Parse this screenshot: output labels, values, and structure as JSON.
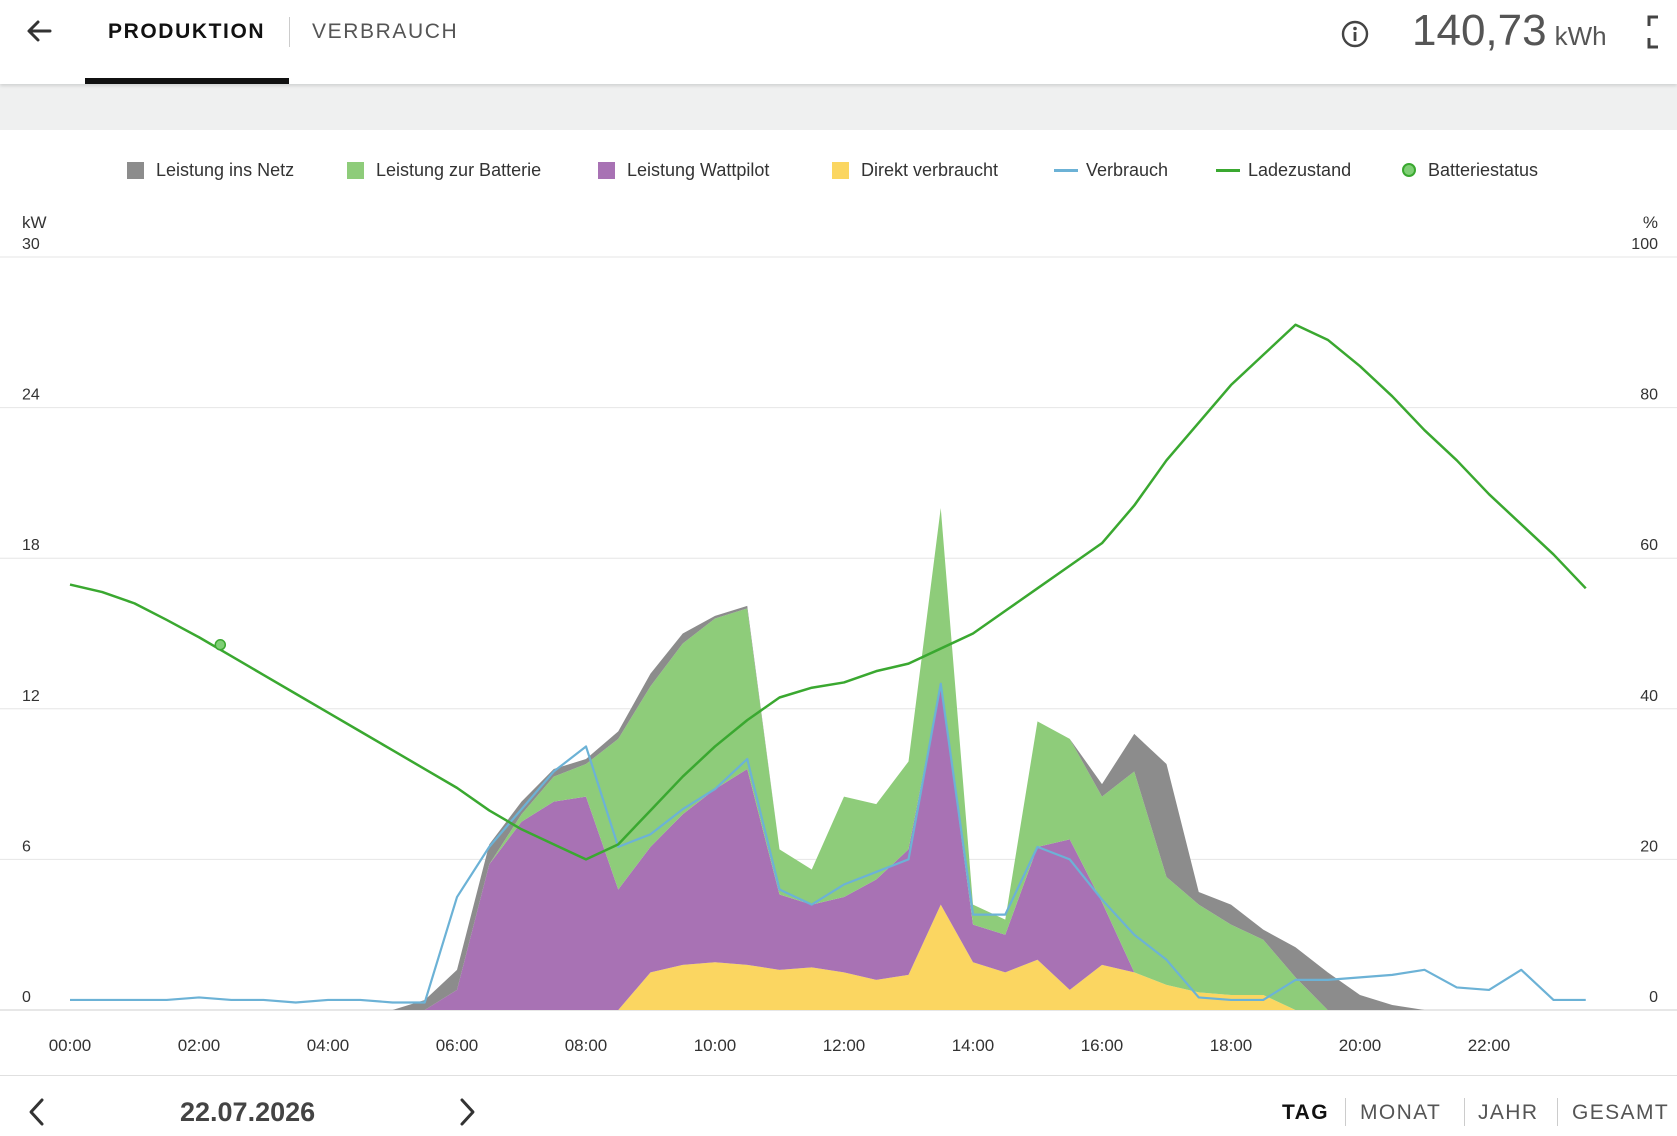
{
  "header": {
    "tab_production": "PRODUKTION",
    "tab_consumption": "VERBRAUCH",
    "total_value": "140,73",
    "total_unit": "kWh",
    "icons": [
      "arrow-left-icon",
      "info-icon",
      "expand-icon"
    ]
  },
  "legend": {
    "items": [
      {
        "label": "Leistung ins Netz",
        "color": "#8c8c8c",
        "kind": "square"
      },
      {
        "label": "Leistung zur Batterie",
        "color": "#8ecc7a",
        "kind": "square"
      },
      {
        "label": "Leistung Wattpilot",
        "color": "#a872b4",
        "kind": "square"
      },
      {
        "label": "Direkt verbraucht",
        "color": "#fbd661",
        "kind": "square"
      },
      {
        "label": "Verbrauch",
        "color": "#6cb2d6",
        "kind": "line"
      },
      {
        "label": "Ladezustand",
        "color": "#3aa830",
        "kind": "line"
      },
      {
        "label": "Batteriestatus",
        "color": "#7fcf75",
        "kind": "dot"
      }
    ]
  },
  "chart_data": {
    "type": "area",
    "ylabel_left": "kW",
    "ylabel_right": "%",
    "ylim_left": [
      0,
      30
    ],
    "ylim_right": [
      0,
      100
    ],
    "yticks_left": [
      "0",
      "6",
      "12",
      "18",
      "24",
      "30"
    ],
    "yticks_right": [
      "0",
      "20",
      "40",
      "60",
      "80",
      "100"
    ],
    "xticks": [
      "00:00",
      "02:00",
      "04:00",
      "06:00",
      "08:00",
      "10:00",
      "12:00",
      "14:00",
      "16:00",
      "18:00",
      "20:00",
      "22:00"
    ],
    "x_hours": [
      0,
      0.5,
      1,
      1.5,
      2,
      2.5,
      3,
      3.5,
      4,
      4.5,
      5,
      5.5,
      6,
      6.5,
      7,
      7.5,
      8,
      8.5,
      9,
      9.5,
      10,
      10.5,
      11,
      11.5,
      12,
      12.5,
      13,
      13.5,
      14,
      14.5,
      15,
      15.5,
      16,
      16.5,
      17,
      17.5,
      18,
      18.5,
      19,
      19.5,
      20,
      20.5,
      21,
      21.5,
      22,
      22.5,
      23,
      23.5
    ],
    "stack_order": [
      "Direkt verbraucht",
      "Leistung Wattpilot",
      "Leistung zur Batterie",
      "Leistung ins Netz"
    ],
    "series": [
      {
        "name": "Direkt verbraucht",
        "axis": "left",
        "values": [
          0,
          0,
          0,
          0,
          0,
          0,
          0,
          0,
          0,
          0,
          0,
          0,
          0,
          0,
          0,
          0,
          0,
          0,
          1.5,
          1.8,
          1.9,
          1.8,
          1.6,
          1.7,
          1.5,
          1.2,
          1.4,
          4.2,
          1.9,
          1.5,
          2.0,
          0.8,
          1.8,
          1.5,
          1.0,
          0.7,
          0.6,
          0.6,
          0,
          0,
          0,
          0,
          0,
          0,
          0,
          0,
          0,
          0
        ]
      },
      {
        "name": "Leistung Wattpilot",
        "axis": "left",
        "values": [
          0,
          0,
          0,
          0,
          0,
          0,
          0,
          0,
          0,
          0,
          0,
          0,
          0.8,
          5.8,
          7.5,
          8.3,
          8.5,
          4.8,
          5.0,
          6.0,
          6.9,
          7.8,
          3.0,
          2.5,
          3.0,
          4.0,
          5.0,
          8.8,
          1.5,
          1.5,
          4.5,
          6.0,
          2.5,
          0,
          0,
          0,
          0,
          0,
          0,
          0,
          0,
          0,
          0,
          0,
          0,
          0,
          0,
          0
        ]
      },
      {
        "name": "Leistung zur Batterie",
        "axis": "left",
        "values": [
          0,
          0,
          0,
          0,
          0,
          0,
          0,
          0,
          0,
          0,
          0,
          0,
          0,
          0,
          0.3,
          1.0,
          1.3,
          6.0,
          6.4,
          6.8,
          6.8,
          6.4,
          1.8,
          1.4,
          4.0,
          3.0,
          3.5,
          7.0,
          0.8,
          0.6,
          5.0,
          4.0,
          4.2,
          8.0,
          4.3,
          3.5,
          2.8,
          2.2,
          1.3,
          0,
          0,
          0,
          0,
          0,
          0,
          0,
          0,
          0
        ]
      },
      {
        "name": "Leistung ins Netz",
        "axis": "left",
        "values": [
          0,
          0,
          0,
          0,
          0,
          0,
          0,
          0,
          0,
          0,
          0,
          0.4,
          0.8,
          0.8,
          0.5,
          0.3,
          0.2,
          0.3,
          0.5,
          0.4,
          0.1,
          0.1,
          0,
          0,
          0,
          0,
          0,
          0,
          0,
          0,
          0,
          0,
          0.5,
          1.5,
          4.5,
          0.5,
          0.8,
          0.4,
          1.2,
          1.5,
          0.6,
          0.2,
          0,
          0,
          0,
          0,
          0,
          0
        ]
      },
      {
        "name": "Verbrauch",
        "axis": "left",
        "values": [
          0.4,
          0.4,
          0.4,
          0.4,
          0.5,
          0.4,
          0.4,
          0.3,
          0.4,
          0.4,
          0.3,
          0.3,
          4.5,
          6.5,
          8.0,
          9.5,
          10.5,
          6.5,
          7.0,
          8.0,
          8.8,
          10.0,
          4.8,
          4.2,
          5.0,
          5.5,
          6.0,
          13.0,
          3.8,
          3.8,
          6.5,
          6.0,
          4.4,
          3.0,
          2.0,
          0.5,
          0.4,
          0.4,
          1.2,
          1.2,
          1.3,
          1.4,
          1.6,
          0.9,
          0.8,
          1.6,
          0.4,
          0.4
        ]
      },
      {
        "name": "Ladezustand",
        "axis": "right",
        "values": [
          56.5,
          55.5,
          54.0,
          51.8,
          49.5,
          47.0,
          44.5,
          42.0,
          39.5,
          37.0,
          34.5,
          32.0,
          29.5,
          26.5,
          24.0,
          22.0,
          20.0,
          22.0,
          26.5,
          31.0,
          35.0,
          38.5,
          41.5,
          42.8,
          43.5,
          45.0,
          46.0,
          48.0,
          50.0,
          53.0,
          56.0,
          59.0,
          62.0,
          67.0,
          73.0,
          78.0,
          83.0,
          87.0,
          91.0,
          89.0,
          85.5,
          81.5,
          77.0,
          73.0,
          68.5,
          64.5,
          60.5,
          56.0
        ]
      }
    ],
    "battery_status_point": {
      "x_hour": 2.33,
      "value": 48.5
    },
    "grid": true,
    "legend_position": "top"
  },
  "footer": {
    "date": "22.07.2026",
    "periods": [
      "TAG",
      "MONAT",
      "JAHR",
      "GESAMT"
    ],
    "active_period": "TAG"
  }
}
